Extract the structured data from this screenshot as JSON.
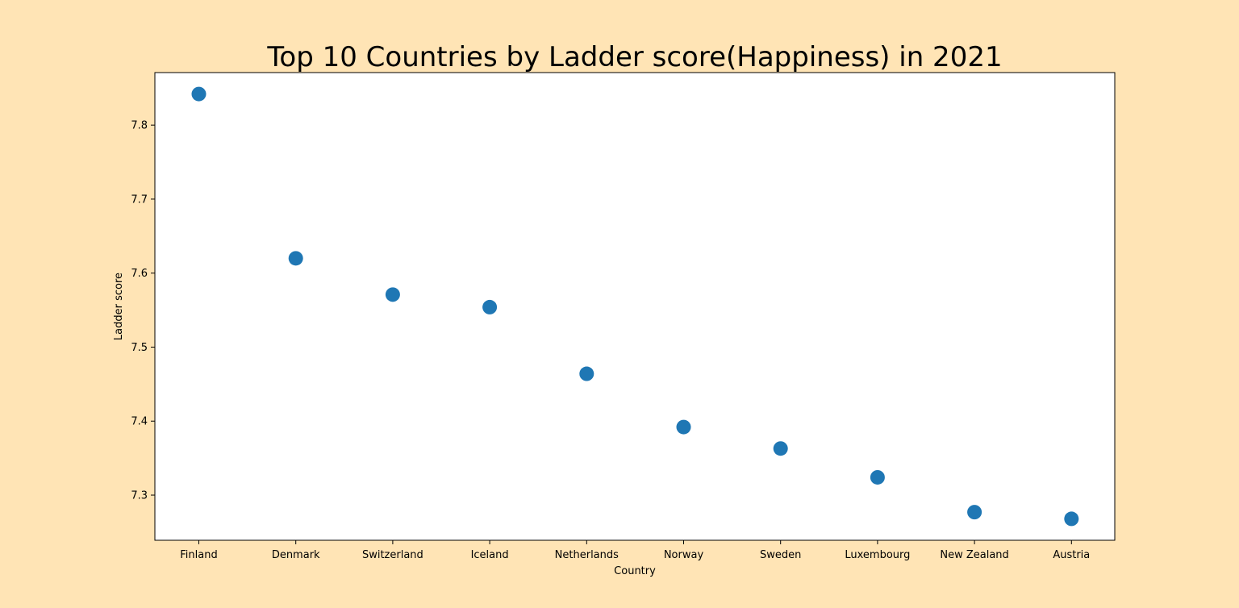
{
  "chart_data": {
    "type": "scatter",
    "title": "Top 10 Countries by Ladder score(Happiness) in 2021",
    "xlabel": "Country",
    "ylabel": "Ladder score",
    "categories": [
      "Finland",
      "Denmark",
      "Switzerland",
      "Iceland",
      "Netherlands",
      "Norway",
      "Sweden",
      "Luxembourg",
      "New Zealand",
      "Austria"
    ],
    "values": [
      7.842,
      7.62,
      7.571,
      7.554,
      7.464,
      7.392,
      7.363,
      7.324,
      7.277,
      7.268
    ],
    "ylim": [
      7.239,
      7.871
    ],
    "yticks": [
      "7.3",
      "7.4",
      "7.5",
      "7.6",
      "7.7",
      "7.8"
    ],
    "grid": false,
    "colors": {
      "page_background": "#ffe4b5",
      "plot_background": "#ffffff",
      "marker": "#1f77b4"
    }
  }
}
